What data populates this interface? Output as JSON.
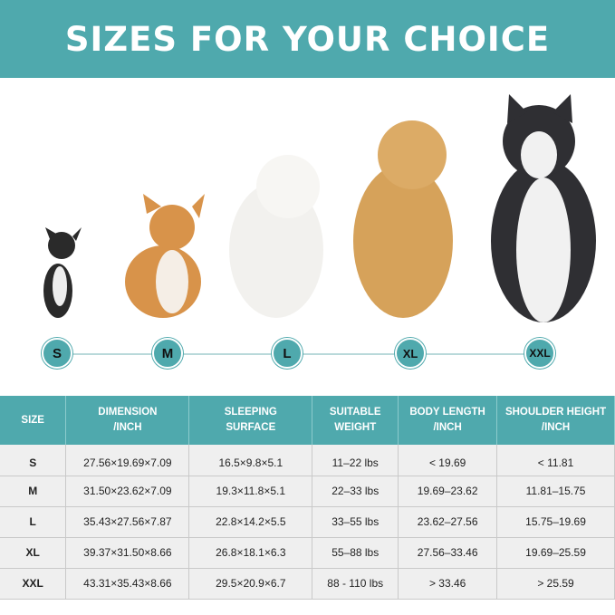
{
  "title": "SIZES FOR YOUR CHOICE",
  "colors": {
    "accent": "#4fa9ad",
    "row_bg": "#efefef"
  },
  "size_markers": [
    "S",
    "M",
    "L",
    "XL",
    "XXL"
  ],
  "dogs": [
    "chihuahua",
    "corgi",
    "samoyed",
    "golden-retriever",
    "husky"
  ],
  "table": {
    "headers": [
      [
        "SIZE",
        ""
      ],
      [
        "DIMENSION",
        "/INCH"
      ],
      [
        "SLEEPING",
        "SURFACE"
      ],
      [
        "SUITABLE",
        "WEIGHT"
      ],
      [
        "BODY LENGTH",
        "/INCH"
      ],
      [
        "SHOULDER HEIGHT",
        "/INCH"
      ]
    ],
    "rows": [
      [
        "S",
        "27.56×19.69×7.09",
        "16.5×9.8×5.1",
        "11–22 lbs",
        "< 19.69",
        "< 11.81"
      ],
      [
        "M",
        "31.50×23.62×7.09",
        "19.3×11.8×5.1",
        "22–33 lbs",
        "19.69–23.62",
        "11.81–15.75"
      ],
      [
        "L",
        "35.43×27.56×7.87",
        "22.8×14.2×5.5",
        "33–55 lbs",
        "23.62–27.56",
        "15.75–19.69"
      ],
      [
        "XL",
        "39.37×31.50×8.66",
        "26.8×18.1×6.3",
        "55–88 lbs",
        "27.56–33.46",
        "19.69–25.59"
      ],
      [
        "XXL",
        "43.31×35.43×8.66",
        "29.5×20.9×6.7",
        "88 - 110 lbs",
        "> 33.46",
        "> 25.59"
      ]
    ]
  }
}
